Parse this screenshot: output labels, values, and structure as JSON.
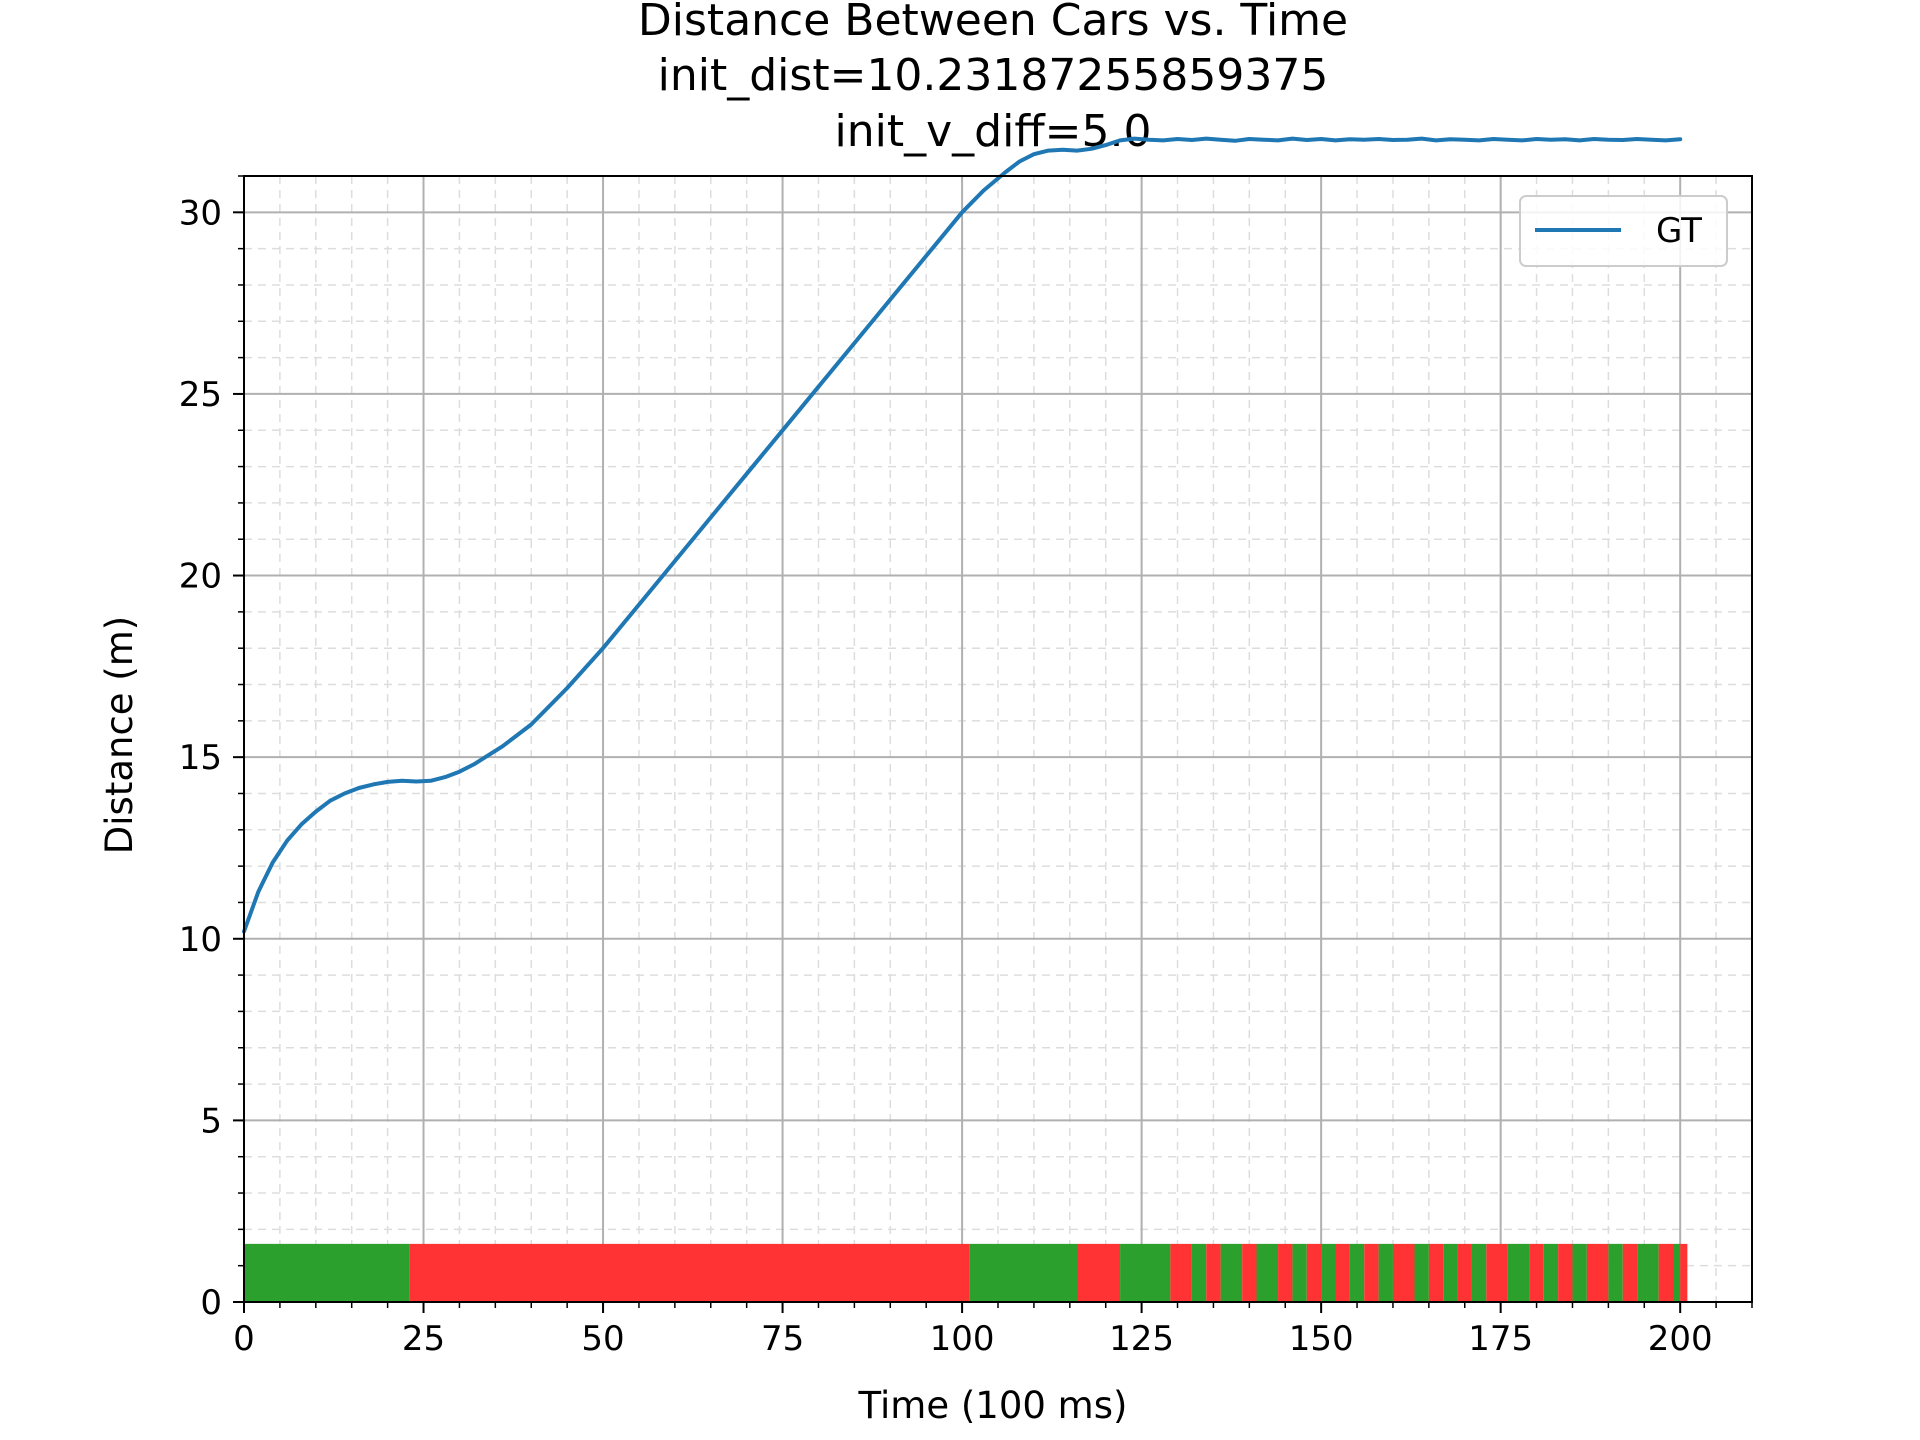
{
  "chart_data": {
    "type": "line",
    "title": "Distance Between Cars vs. Time",
    "subtitle_lines": [
      "init_dist=10.23187255859375",
      "init_v_diff=5.0"
    ],
    "xlabel": "Time (100 ms)",
    "ylabel": "Distance (m)",
    "xlim": [
      0,
      210
    ],
    "ylim": [
      0,
      31
    ],
    "xticks": [
      0,
      25,
      50,
      75,
      100,
      125,
      150,
      175,
      200
    ],
    "yticks": [
      0,
      5,
      10,
      15,
      20,
      25,
      30
    ],
    "grid": true,
    "minor_grid": true,
    "legend_position": "top-right",
    "series": [
      {
        "name": "GT",
        "color": "#1f77b4",
        "x": [
          0,
          2,
          4,
          6,
          8,
          10,
          12,
          14,
          16,
          18,
          20,
          22,
          24,
          26,
          28,
          30,
          32,
          34,
          36,
          38,
          40,
          45,
          50,
          55,
          60,
          65,
          70,
          75,
          80,
          85,
          90,
          95,
          100,
          103,
          106,
          108,
          110,
          112,
          114,
          116,
          118,
          120,
          122,
          124,
          126,
          128,
          130,
          132,
          134,
          136,
          138,
          140,
          142,
          144,
          146,
          148,
          150,
          152,
          154,
          156,
          158,
          160,
          162,
          164,
          166,
          168,
          170,
          172,
          174,
          176,
          178,
          180,
          182,
          184,
          186,
          188,
          190,
          192,
          194,
          196,
          198,
          200
        ],
        "y": [
          10.2,
          11.3,
          12.1,
          12.7,
          13.15,
          13.5,
          13.8,
          14.0,
          14.15,
          14.25,
          14.32,
          14.35,
          14.33,
          14.35,
          14.45,
          14.6,
          14.8,
          15.05,
          15.3,
          15.6,
          15.9,
          16.9,
          18.0,
          19.2,
          20.4,
          21.6,
          22.8,
          24.0,
          25.2,
          26.4,
          27.6,
          28.8,
          30.0,
          30.6,
          31.1,
          31.4,
          31.6,
          31.7,
          31.72,
          31.7,
          31.75,
          31.85,
          31.98,
          32.03,
          32.0,
          31.98,
          32.02,
          31.99,
          32.03,
          32.0,
          31.97,
          32.02,
          32.0,
          31.98,
          32.03,
          31.99,
          32.02,
          31.98,
          32.01,
          32.0,
          32.02,
          31.99,
          32.0,
          32.03,
          31.98,
          32.01,
          32.0,
          31.98,
          32.02,
          32.0,
          31.98,
          32.02,
          32.0,
          32.01,
          31.98,
          32.02,
          32.0,
          31.99,
          32.02,
          32.0,
          31.98,
          32.01
        ]
      }
    ],
    "status_band": {
      "height": 1.6,
      "colors": {
        "green": "#2ca02c",
        "red": "#ff3333"
      },
      "segments": [
        {
          "x0": 0,
          "x1": 23,
          "color": "green"
        },
        {
          "x0": 23,
          "x1": 101,
          "color": "red"
        },
        {
          "x0": 101,
          "x1": 116,
          "color": "green"
        },
        {
          "x0": 116,
          "x1": 122,
          "color": "red"
        },
        {
          "x0": 122,
          "x1": 129,
          "color": "green"
        },
        {
          "x0": 129,
          "x1": 132,
          "color": "red"
        },
        {
          "x0": 132,
          "x1": 134,
          "color": "green"
        },
        {
          "x0": 134,
          "x1": 136,
          "color": "red"
        },
        {
          "x0": 136,
          "x1": 139,
          "color": "green"
        },
        {
          "x0": 139,
          "x1": 141,
          "color": "red"
        },
        {
          "x0": 141,
          "x1": 144,
          "color": "green"
        },
        {
          "x0": 144,
          "x1": 146,
          "color": "red"
        },
        {
          "x0": 146,
          "x1": 148,
          "color": "green"
        },
        {
          "x0": 148,
          "x1": 150,
          "color": "red"
        },
        {
          "x0": 150,
          "x1": 152,
          "color": "green"
        },
        {
          "x0": 152,
          "x1": 154,
          "color": "red"
        },
        {
          "x0": 154,
          "x1": 156,
          "color": "green"
        },
        {
          "x0": 156,
          "x1": 158,
          "color": "red"
        },
        {
          "x0": 158,
          "x1": 160,
          "color": "green"
        },
        {
          "x0": 160,
          "x1": 163,
          "color": "red"
        },
        {
          "x0": 163,
          "x1": 165,
          "color": "green"
        },
        {
          "x0": 165,
          "x1": 167,
          "color": "red"
        },
        {
          "x0": 167,
          "x1": 169,
          "color": "green"
        },
        {
          "x0": 169,
          "x1": 171,
          "color": "red"
        },
        {
          "x0": 171,
          "x1": 173,
          "color": "green"
        },
        {
          "x0": 173,
          "x1": 176,
          "color": "red"
        },
        {
          "x0": 176,
          "x1": 179,
          "color": "green"
        },
        {
          "x0": 179,
          "x1": 181,
          "color": "red"
        },
        {
          "x0": 181,
          "x1": 183,
          "color": "green"
        },
        {
          "x0": 183,
          "x1": 185,
          "color": "red"
        },
        {
          "x0": 185,
          "x1": 187,
          "color": "green"
        },
        {
          "x0": 187,
          "x1": 190,
          "color": "red"
        },
        {
          "x0": 190,
          "x1": 192,
          "color": "green"
        },
        {
          "x0": 192,
          "x1": 194,
          "color": "red"
        },
        {
          "x0": 194,
          "x1": 197,
          "color": "green"
        },
        {
          "x0": 197,
          "x1": 199,
          "color": "red"
        },
        {
          "x0": 199,
          "x1": 200,
          "color": "green"
        },
        {
          "x0": 200,
          "x1": 201,
          "color": "red"
        }
      ]
    }
  }
}
